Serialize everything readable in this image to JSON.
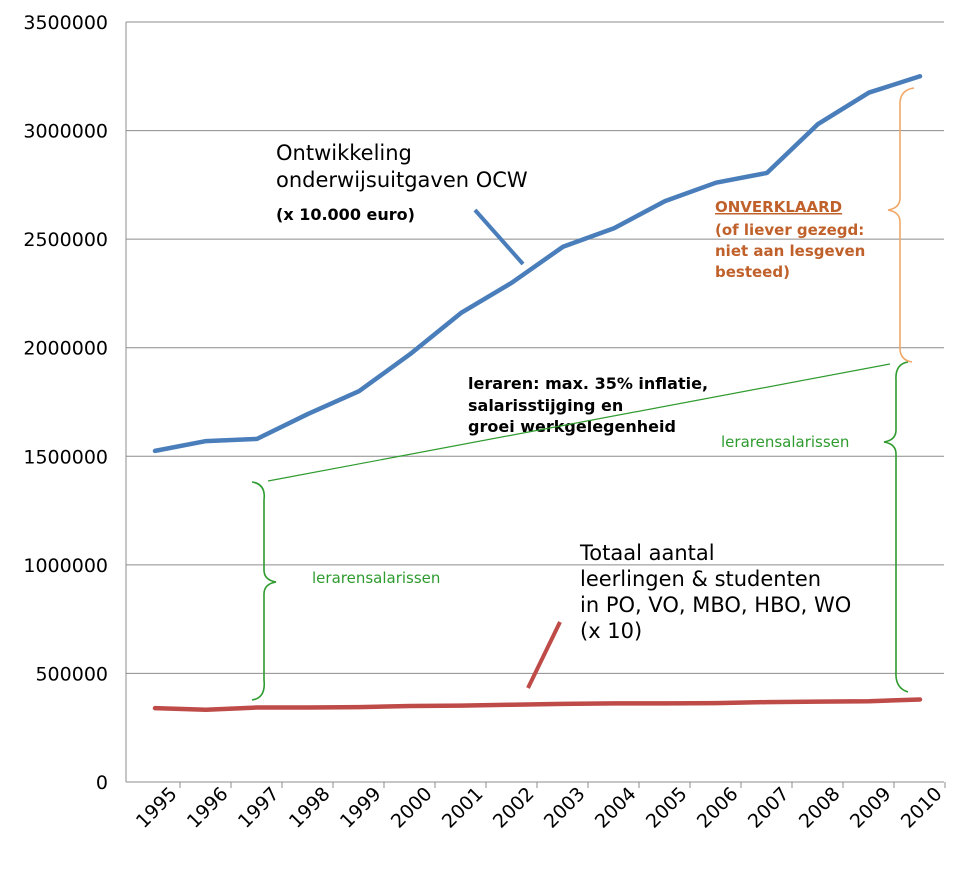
{
  "chart_data": {
    "type": "line",
    "categories": [
      "1995",
      "1996",
      "1997",
      "1998",
      "1999",
      "2000",
      "2001",
      "2002",
      "2003",
      "2004",
      "2005",
      "2006",
      "2007",
      "2008",
      "2009",
      "2010"
    ],
    "ylim": [
      0,
      3500000
    ],
    "yticks": [
      "0",
      "500000",
      "1000000",
      "1500000",
      "2000000",
      "2500000",
      "3000000",
      "3500000"
    ],
    "grid": true,
    "series": [
      {
        "key": "ocw",
        "color": "#4a7ebb",
        "values": [
          1525000,
          1570000,
          1580000,
          1695000,
          1800000,
          1970000,
          2160000,
          2300000,
          2465000,
          2550000,
          2675000,
          2760000,
          2805000,
          3030000,
          3175000,
          3250000
        ]
      },
      {
        "key": "students",
        "color": "#be4b48",
        "values": [
          340000,
          333000,
          343000,
          343000,
          345000,
          350000,
          352000,
          356000,
          360000,
          362000,
          362000,
          363000,
          368000,
          370000,
          372000,
          380000
        ]
      }
    ],
    "annotations": {
      "ocw_title": [
        "Ontwikkeling",
        "onderwijsuitgaven OCW",
        "(x 10.000 euro)"
      ],
      "students_title": [
        "Totaal aantal",
        "leerlingen & studenten",
        "in PO, VO, MBO, HBO, WO",
        "(x 10)"
      ],
      "growth_text": [
        "leraren: max. 35% inflatie,",
        "salarisstijging en",
        "groei werkgelegenheid"
      ],
      "salaries_left": "lerarensalarissen",
      "salaries_right": "lerarensalarissen",
      "unexplained_head": "ONVERKLAARD",
      "unexplained_body": [
        "(of liever gezegd:",
        "niet aan lesgeven",
        "besteed)"
      ]
    }
  }
}
